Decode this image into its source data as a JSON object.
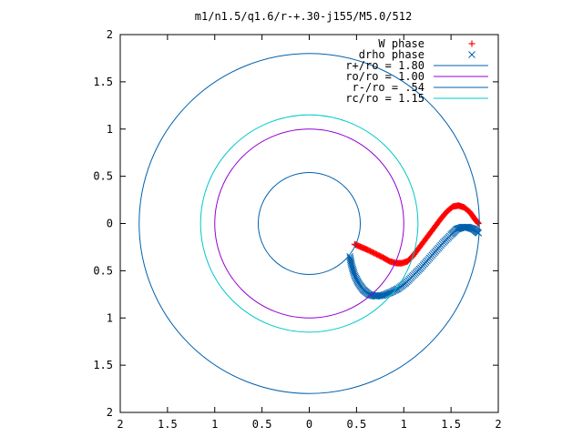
{
  "chart_data": {
    "type": "scatter",
    "title": "m1/n1.5/q1.6/r-+.30-j155/M5.0/512",
    "xlabel": "",
    "ylabel": "",
    "xlim": [
      -2,
      2
    ],
    "ylim": [
      -2,
      2
    ],
    "x_ticks": [
      -2,
      -1.5,
      -1,
      -0.5,
      0,
      0.5,
      1,
      1.5,
      2
    ],
    "y_ticks": [
      2,
      1.5,
      1,
      0.5,
      0,
      -0.5,
      -1,
      -1.5,
      -2
    ],
    "x_tick_labels": [
      "2",
      "1.5",
      "1",
      "0.5",
      "0",
      "0.5",
      "1",
      "1.5",
      "2"
    ],
    "y_tick_labels": [
      "2",
      "1.5",
      "1",
      "0.5",
      "0",
      "0.5",
      "1",
      "1.5",
      "2"
    ],
    "grid": false,
    "legend_position": "top-right",
    "series": [
      {
        "name": "W phase",
        "kind": "points",
        "marker": "plus",
        "color": "#ff0000",
        "points": [
          [
            0.48,
            -0.22
          ],
          [
            0.55,
            -0.25
          ],
          [
            0.62,
            -0.28
          ],
          [
            0.7,
            -0.32
          ],
          [
            0.78,
            -0.36
          ],
          [
            0.85,
            -0.4
          ],
          [
            0.92,
            -0.42
          ],
          [
            0.98,
            -0.42
          ],
          [
            1.04,
            -0.4
          ],
          [
            1.1,
            -0.34
          ],
          [
            1.16,
            -0.26
          ],
          [
            1.22,
            -0.18
          ],
          [
            1.28,
            -0.1
          ],
          [
            1.34,
            -0.02
          ],
          [
            1.4,
            0.06
          ],
          [
            1.46,
            0.13
          ],
          [
            1.52,
            0.18
          ],
          [
            1.58,
            0.19
          ],
          [
            1.64,
            0.17
          ],
          [
            1.7,
            0.12
          ],
          [
            1.75,
            0.05
          ],
          [
            1.79,
            0.0
          ]
        ]
      },
      {
        "name": "drho phase",
        "kind": "points",
        "marker": "cross",
        "color": "#0060ad",
        "points": [
          [
            0.43,
            -0.35
          ],
          [
            0.45,
            -0.45
          ],
          [
            0.48,
            -0.55
          ],
          [
            0.52,
            -0.63
          ],
          [
            0.57,
            -0.7
          ],
          [
            0.63,
            -0.75
          ],
          [
            0.7,
            -0.77
          ],
          [
            0.78,
            -0.76
          ],
          [
            0.86,
            -0.73
          ],
          [
            0.94,
            -0.69
          ],
          [
            1.02,
            -0.63
          ],
          [
            1.1,
            -0.55
          ],
          [
            1.18,
            -0.47
          ],
          [
            1.26,
            -0.38
          ],
          [
            1.34,
            -0.29
          ],
          [
            1.42,
            -0.2
          ],
          [
            1.5,
            -0.12
          ],
          [
            1.56,
            -0.06
          ],
          [
            1.62,
            -0.04
          ],
          [
            1.68,
            -0.04
          ],
          [
            1.74,
            -0.06
          ],
          [
            1.79,
            -0.1
          ]
        ]
      },
      {
        "name": "r+/ro = 1.80",
        "kind": "circle",
        "radius": 1.8,
        "color": "#0060ad"
      },
      {
        "name": "ro/ro = 1.00",
        "kind": "circle",
        "radius": 1.0,
        "color": "#9400d3"
      },
      {
        "name": "r-/ro = .54",
        "kind": "circle",
        "radius": 0.54,
        "color": "#0060ad"
      },
      {
        "name": "rc/ro = 1.15",
        "kind": "circle",
        "radius": 1.15,
        "color": "#00c8c8"
      }
    ]
  }
}
